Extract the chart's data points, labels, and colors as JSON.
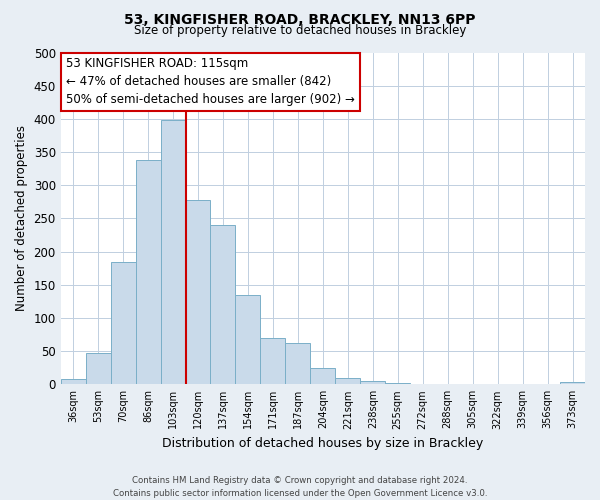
{
  "title": "53, KINGFISHER ROAD, BRACKLEY, NN13 6PP",
  "subtitle": "Size of property relative to detached houses in Brackley",
  "xlabel": "Distribution of detached houses by size in Brackley",
  "ylabel": "Number of detached properties",
  "bar_labels": [
    "36sqm",
    "53sqm",
    "70sqm",
    "86sqm",
    "103sqm",
    "120sqm",
    "137sqm",
    "154sqm",
    "171sqm",
    "187sqm",
    "204sqm",
    "221sqm",
    "238sqm",
    "255sqm",
    "272sqm",
    "288sqm",
    "305sqm",
    "322sqm",
    "339sqm",
    "356sqm",
    "373sqm"
  ],
  "bar_values": [
    8,
    47,
    185,
    338,
    398,
    277,
    240,
    135,
    70,
    62,
    25,
    9,
    5,
    2,
    1,
    1,
    0,
    0,
    0,
    0,
    3
  ],
  "bar_color": "#c9daea",
  "bar_edge_color": "#7aafc8",
  "vline_x_index": 4,
  "vline_color": "#cc0000",
  "ylim": [
    0,
    500
  ],
  "yticks": [
    0,
    50,
    100,
    150,
    200,
    250,
    300,
    350,
    400,
    450,
    500
  ],
  "annotation_title": "53 KINGFISHER ROAD: 115sqm",
  "annotation_line1": "← 47% of detached houses are smaller (842)",
  "annotation_line2": "50% of semi-detached houses are larger (902) →",
  "annotation_box_facecolor": "#ffffff",
  "annotation_box_edgecolor": "#cc0000",
  "footer_line1": "Contains HM Land Registry data © Crown copyright and database right 2024.",
  "footer_line2": "Contains public sector information licensed under the Open Government Licence v3.0.",
  "fig_bg_color": "#e8eef4",
  "plot_bg_color": "#ffffff",
  "grid_color": "#c0cfe0"
}
